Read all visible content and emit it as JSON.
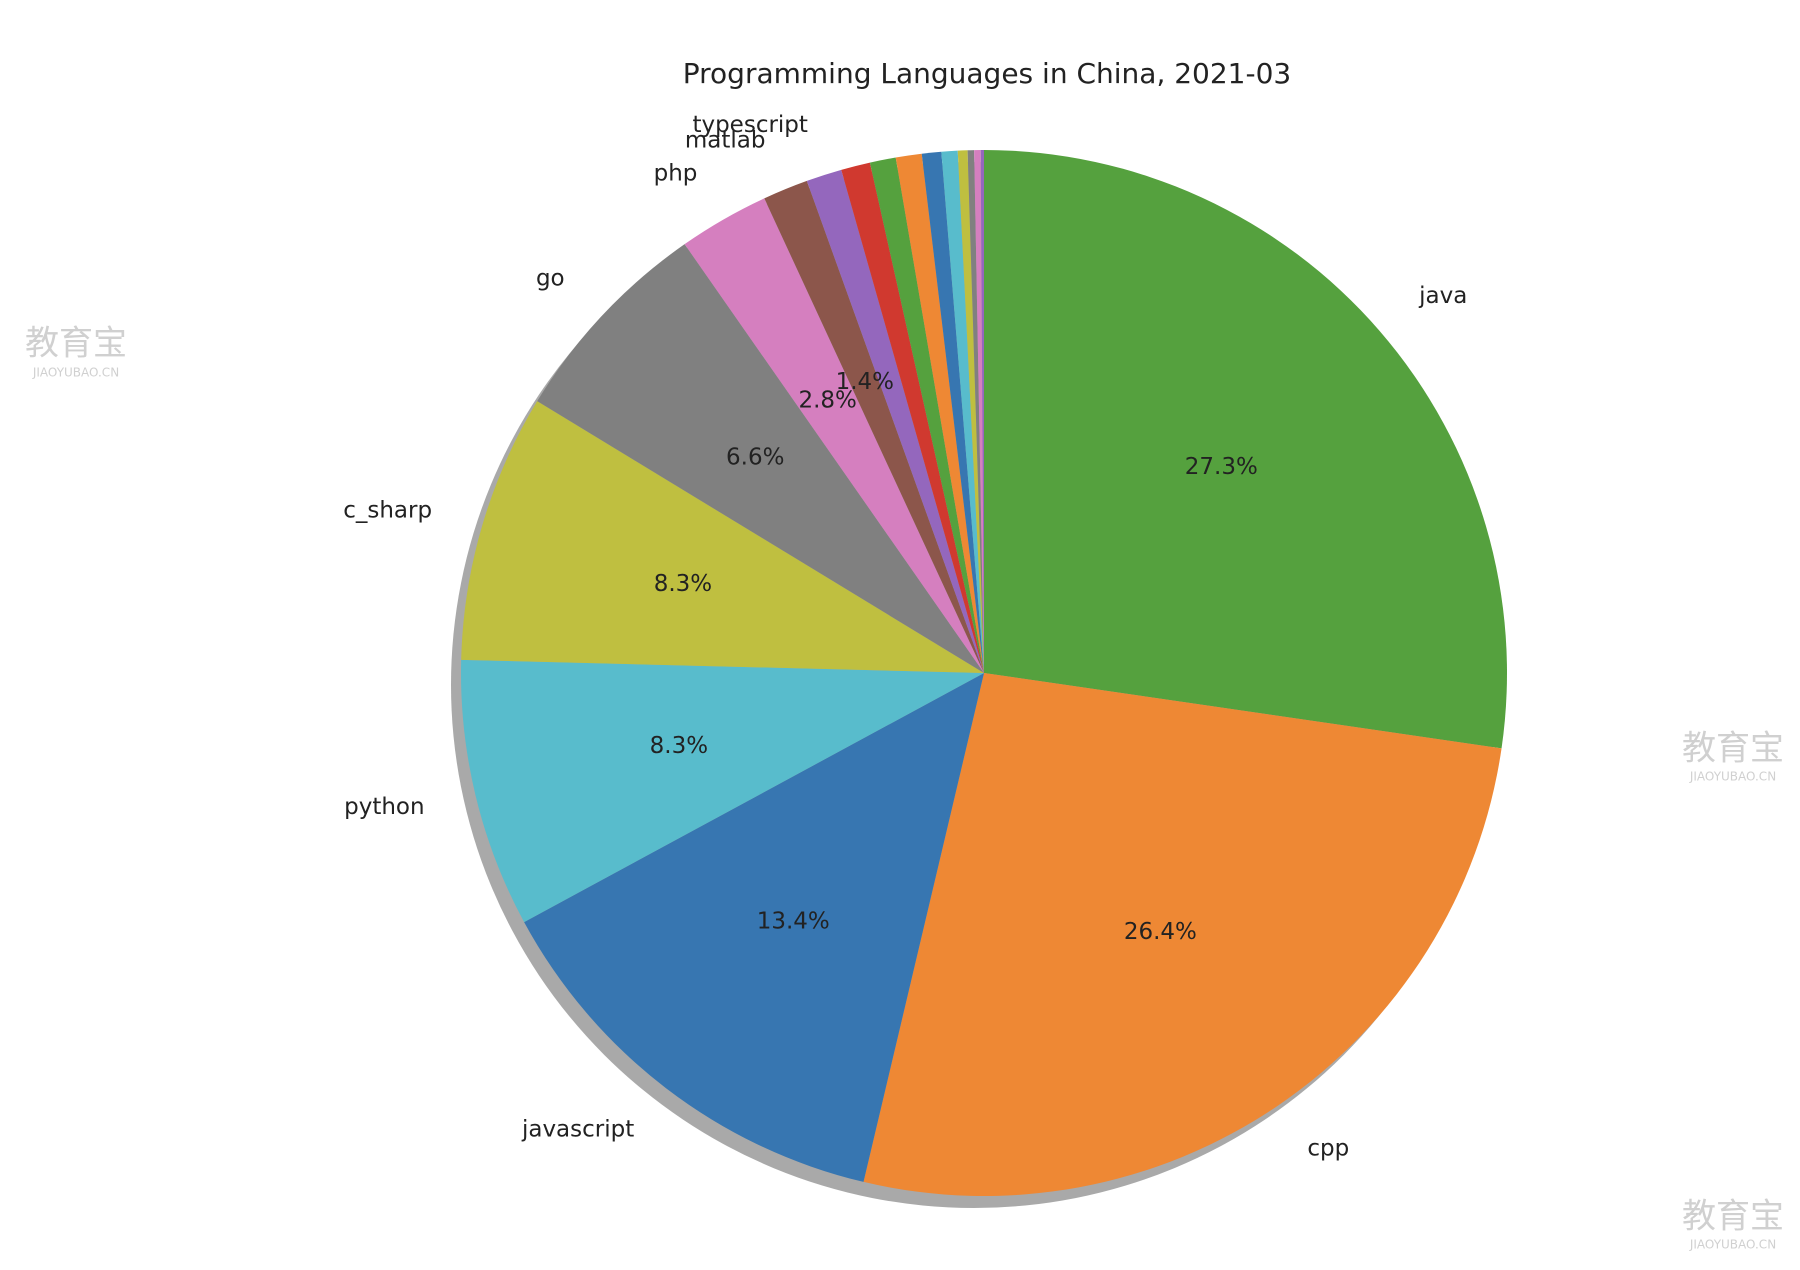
{
  "chart_data": {
    "type": "pie",
    "title": "Programming Languages in China, 2021-03",
    "categories": [
      "java",
      "cpp",
      "javascript",
      "python",
      "c_sharp",
      "go",
      "php",
      "matlab",
      "typescript",
      null,
      null,
      null,
      null,
      null,
      null,
      null,
      null,
      null
    ],
    "values": [
      27.3,
      26.4,
      13.4,
      8.3,
      8.3,
      6.6,
      2.8,
      1.4,
      1.1,
      0.9,
      0.8,
      0.8,
      0.6,
      0.5,
      0.3,
      0.2,
      0.2,
      0.1
    ],
    "value_labels": [
      "27.3%",
      "26.4%",
      "13.4%",
      "8.3%",
      "8.3%",
      "6.6%",
      "2.8%",
      "1.4%",
      null,
      null,
      null,
      null,
      null,
      null,
      null,
      null,
      null,
      null
    ],
    "colors": [
      "#55a13e",
      "#ee8834",
      "#3776b1",
      "#58bccc",
      "#bfbf40",
      "#808080",
      "#d57fbf",
      "#8c564b",
      "#9467bd",
      "#d0392f",
      "#55a13e",
      "#ee8834",
      "#3776b1",
      "#58bccc",
      "#bfbf40",
      "#808080",
      "#d57fbf",
      "#9467bd"
    ],
    "start_angle": 90,
    "counterclock": false,
    "shadow": true
  },
  "watermark": {
    "text": "教育宝",
    "sub": "JIAOYUBAO.CN"
  }
}
